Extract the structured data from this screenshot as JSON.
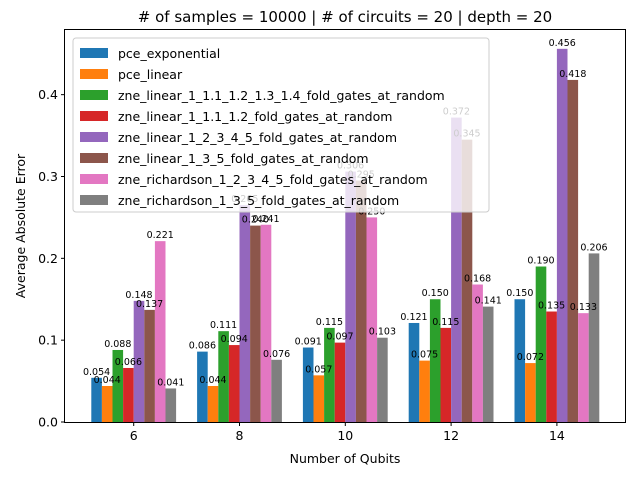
{
  "chart_data": {
    "type": "bar",
    "title": "# of samples = 10000 | # of circuits = 20 | depth = 20",
    "xlabel": "Number of Qubits",
    "ylabel": "Average Absolute Error",
    "categories": [
      "6",
      "8",
      "10",
      "12",
      "14"
    ],
    "ylim": [
      0,
      0.479
    ],
    "yticks": [
      "0.0",
      "0.1",
      "0.2",
      "0.3",
      "0.4"
    ],
    "yticks_values": [
      0,
      0.1,
      0.2,
      0.3,
      0.4
    ],
    "grid": false,
    "legend_position": "top-left",
    "series": [
      {
        "name": "pce_exponential",
        "color": "#1f77b4",
        "values": [
          0.054,
          0.086,
          0.091,
          0.121,
          0.15
        ],
        "labels": [
          "0.054",
          "0.086",
          "0.091",
          "0.121",
          "0.150"
        ]
      },
      {
        "name": "pce_linear",
        "color": "#ff7f0e",
        "values": [
          0.044,
          0.044,
          0.057,
          0.075,
          0.072
        ],
        "labels": [
          "0.044",
          "0.044",
          "0.057",
          "0.075",
          "0.072"
        ]
      },
      {
        "name": "zne_linear_1_1.1_1.2_1.3_1.4_fold_gates_at_random",
        "color": "#2ca02c",
        "values": [
          0.088,
          0.111,
          0.115,
          0.15,
          0.19
        ],
        "labels": [
          "0.088",
          "0.111",
          "0.115",
          "0.150",
          "0.190"
        ]
      },
      {
        "name": "zne_linear_1_1.1_1.2_fold_gates_at_random",
        "color": "#d62728",
        "values": [
          0.066,
          0.094,
          0.097,
          0.115,
          0.135
        ],
        "labels": [
          "0.066",
          "0.094",
          "0.097",
          "0.115",
          "0.135"
        ]
      },
      {
        "name": "zne_linear_1_2_3_4_5_fold_gates_at_random",
        "color": "#9467bd",
        "values": [
          0.148,
          0.265,
          0.306,
          0.372,
          0.456
        ],
        "labels": [
          "0.148",
          "0.265",
          "0.306",
          "0.372",
          "0.456"
        ]
      },
      {
        "name": "zne_linear_1_3_5_fold_gates_at_random",
        "color": "#8c564b",
        "values": [
          0.137,
          0.24,
          0.295,
          0.345,
          0.418
        ],
        "labels": [
          "0.137",
          "0.240",
          "0.295",
          "0.345",
          "0.418"
        ]
      },
      {
        "name": "zne_richardson_1_2_3_4_5_fold_gates_at_random",
        "color": "#e377c2",
        "values": [
          0.221,
          0.241,
          0.25,
          0.168,
          0.133
        ],
        "labels": [
          "0.221",
          "0.241",
          "0.250",
          "0.168",
          "0.133"
        ]
      },
      {
        "name": "zne_richardson_1_3_5_fold_gates_at_random",
        "color": "#7f7f7f",
        "values": [
          0.041,
          0.076,
          0.103,
          0.141,
          0.206
        ],
        "labels": [
          "0.041",
          "0.076",
          "0.103",
          "0.141",
          "0.206"
        ]
      }
    ]
  }
}
